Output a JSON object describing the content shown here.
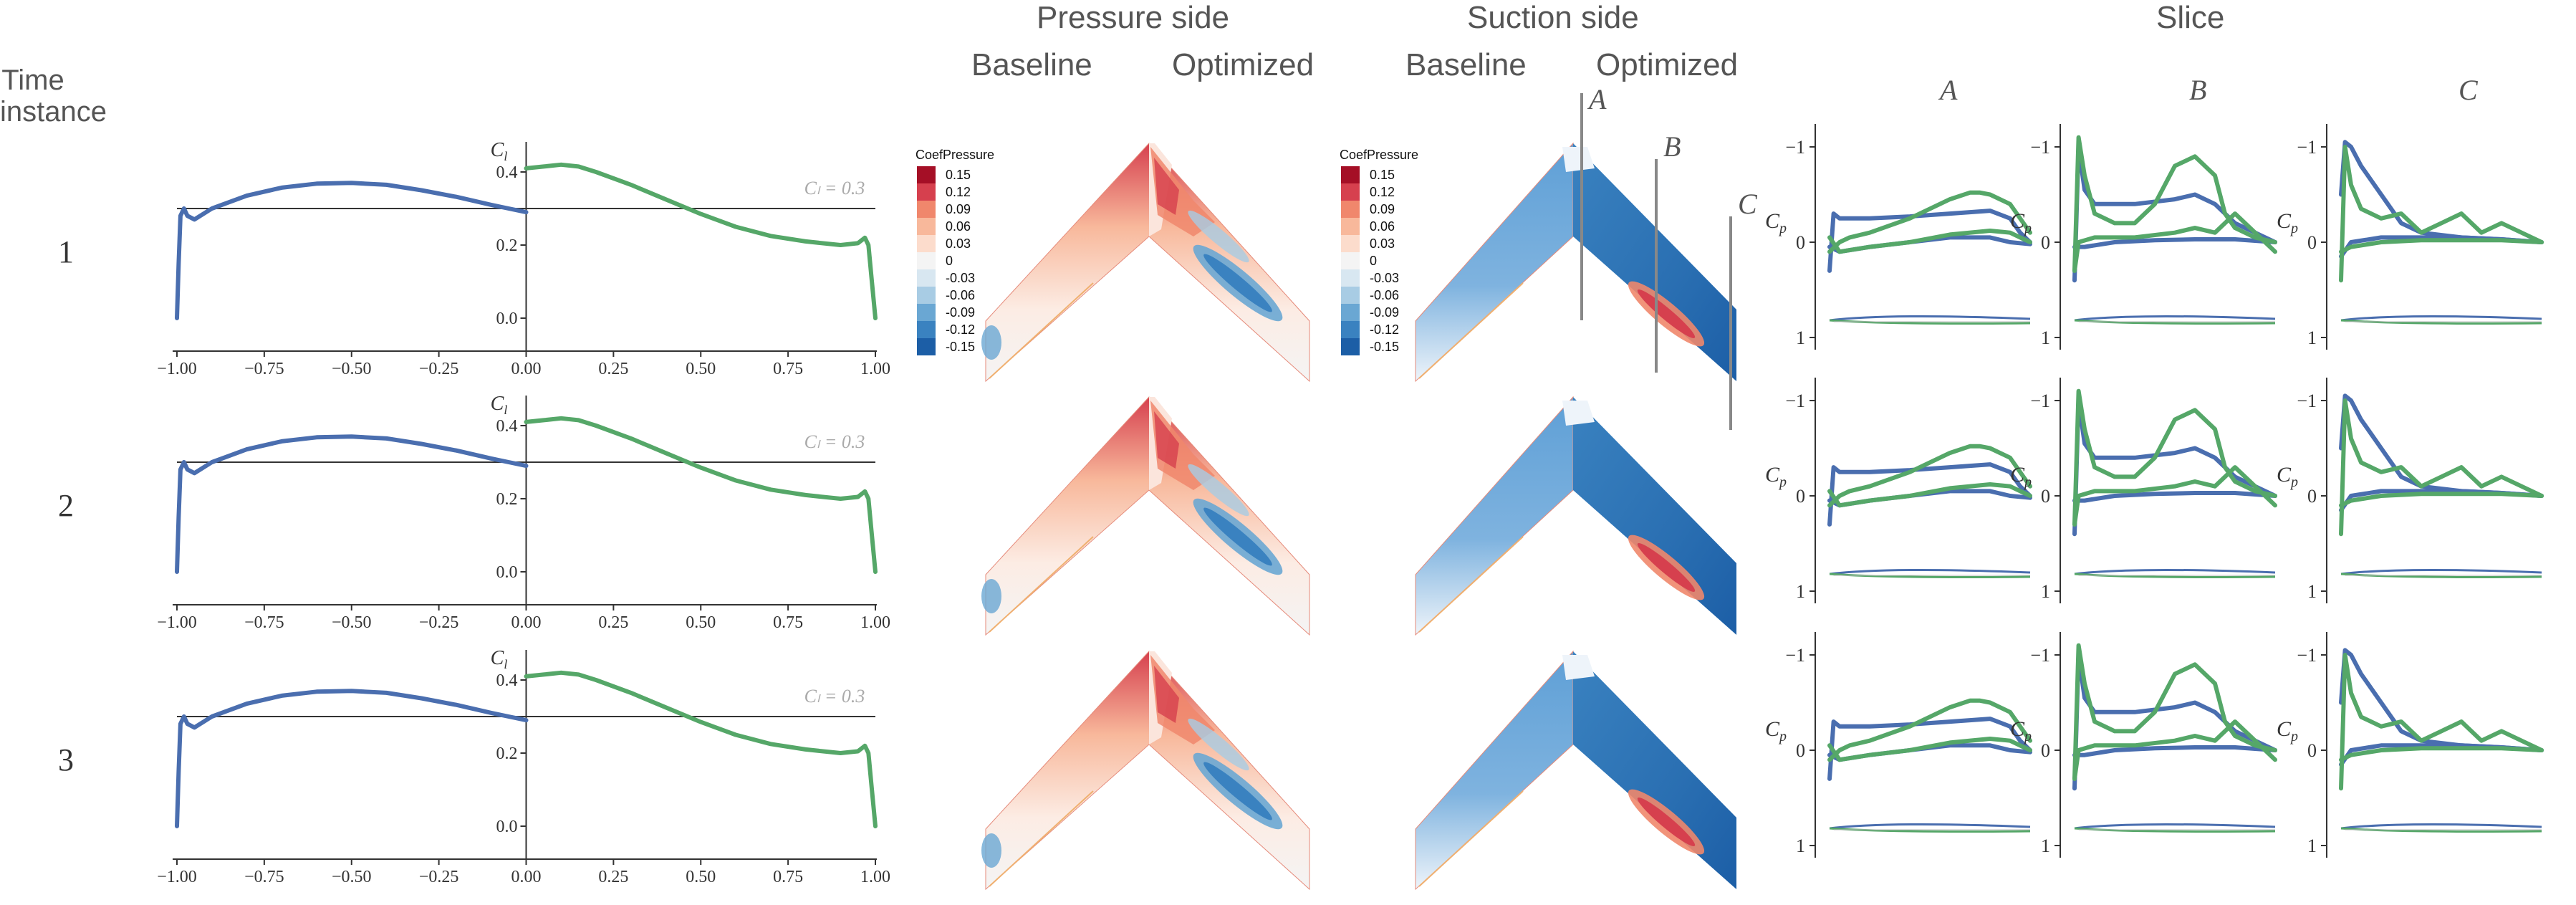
{
  "headers": {
    "time_instance": [
      "Time",
      "instance"
    ],
    "pressure_side": "Pressure side",
    "suction_side": "Suction side",
    "slice": "Slice",
    "baseline": "Baseline",
    "optimized": "Optimized",
    "slice_cols": [
      "A",
      "B",
      "C"
    ]
  },
  "row_labels": [
    "1",
    "2",
    "3"
  ],
  "colorbar": {
    "title": "CoefPressure",
    "ticks": [
      "0.15",
      "0.12",
      "0.09",
      "0.06",
      "0.03",
      "0",
      "-0.03",
      "-0.06",
      "-0.09",
      "-0.12",
      "-0.15"
    ],
    "colors": [
      "#a50f26",
      "#d6404e",
      "#f0876c",
      "#f8b89b",
      "#fcdccc",
      "#f4f4f4",
      "#d8e7f1",
      "#a8cce4",
      "#6aa7d3",
      "#3a82c0",
      "#1c5ea6"
    ]
  },
  "colors": {
    "baseline": "#4a6eaf",
    "optimized": "#55a768",
    "refline": "#333333",
    "axis": "#333333"
  },
  "chart_data": [
    {
      "type": "line",
      "panel": "lift-distribution",
      "time_instance": 1,
      "xlabel": "",
      "ylabel": "C_l",
      "xlim": [
        -1.0,
        1.0
      ],
      "ylim": [
        -0.1,
        0.45
      ],
      "xticks": [
        -1.0,
        -0.75,
        -0.5,
        -0.25,
        0.0,
        0.25,
        0.5,
        0.75,
        1.0
      ],
      "xtick_labels": [
        "−1.00",
        "−0.75",
        "−0.50",
        "−0.25",
        "0.00",
        "0.25",
        "0.50",
        "0.75",
        "1.00"
      ],
      "yticks": [
        0.0,
        0.2,
        0.4
      ],
      "ytick_labels": [
        "0.0",
        "0.2",
        "0.4"
      ],
      "reference": {
        "y": 0.3,
        "label": "C_l = 0.3"
      },
      "series": [
        {
          "x": [
            -1.0,
            -0.995,
            -0.99,
            -0.98,
            -0.97,
            -0.95,
            -0.9,
            -0.8,
            -0.7,
            -0.6,
            -0.5,
            -0.4,
            -0.3,
            -0.2,
            -0.1,
            -0.05,
            0.0
          ],
          "y": [
            0.0,
            0.15,
            0.28,
            0.3,
            0.28,
            0.27,
            0.3,
            0.335,
            0.357,
            0.368,
            0.37,
            0.365,
            0.35,
            0.332,
            0.31,
            0.3,
            0.29
          ]
        },
        {
          "x": [
            0.0,
            0.05,
            0.1,
            0.15,
            0.2,
            0.3,
            0.4,
            0.5,
            0.6,
            0.7,
            0.8,
            0.9,
            0.95,
            0.97,
            0.98,
            0.99,
            1.0
          ],
          "y": [
            0.41,
            0.415,
            0.42,
            0.415,
            0.4,
            0.365,
            0.325,
            0.285,
            0.25,
            0.225,
            0.21,
            0.2,
            0.205,
            0.22,
            0.2,
            0.1,
            0.0
          ]
        }
      ]
    },
    {
      "type": "line",
      "panel": "lift-distribution",
      "time_instance": 2,
      "xlabel": "",
      "ylabel": "C_l",
      "xlim": [
        -1.0,
        1.0
      ],
      "ylim": [
        -0.1,
        0.45
      ],
      "xticks": [
        -1.0,
        -0.75,
        -0.5,
        -0.25,
        0.0,
        0.25,
        0.5,
        0.75,
        1.0
      ],
      "xtick_labels": [
        "−1.00",
        "−0.75",
        "−0.50",
        "−0.25",
        "0.00",
        "0.25",
        "0.50",
        "0.75",
        "1.00"
      ],
      "yticks": [
        0.0,
        0.2,
        0.4
      ],
      "ytick_labels": [
        "0.0",
        "0.2",
        "0.4"
      ],
      "reference": {
        "y": 0.3,
        "label": "C_l = 0.3"
      },
      "series": [
        {
          "x": [
            -1.0,
            -0.995,
            -0.99,
            -0.98,
            -0.97,
            -0.95,
            -0.9,
            -0.8,
            -0.7,
            -0.6,
            -0.5,
            -0.4,
            -0.3,
            -0.2,
            -0.1,
            -0.05,
            0.0
          ],
          "y": [
            0.0,
            0.15,
            0.28,
            0.3,
            0.28,
            0.27,
            0.3,
            0.335,
            0.357,
            0.368,
            0.37,
            0.365,
            0.35,
            0.332,
            0.31,
            0.3,
            0.29
          ]
        },
        {
          "x": [
            0.0,
            0.05,
            0.1,
            0.15,
            0.2,
            0.3,
            0.4,
            0.5,
            0.6,
            0.7,
            0.8,
            0.9,
            0.95,
            0.97,
            0.98,
            0.99,
            1.0
          ],
          "y": [
            0.41,
            0.415,
            0.42,
            0.415,
            0.4,
            0.365,
            0.325,
            0.285,
            0.25,
            0.225,
            0.21,
            0.2,
            0.205,
            0.22,
            0.2,
            0.1,
            0.0
          ]
        }
      ]
    },
    {
      "type": "line",
      "panel": "lift-distribution",
      "time_instance": 3,
      "xlabel": "",
      "ylabel": "C_l",
      "xlim": [
        -1.0,
        1.0
      ],
      "ylim": [
        -0.1,
        0.45
      ],
      "xticks": [
        -1.0,
        -0.75,
        -0.5,
        -0.25,
        0.0,
        0.25,
        0.5,
        0.75,
        1.0
      ],
      "xtick_labels": [
        "−1.00",
        "−0.75",
        "−0.50",
        "−0.25",
        "0.00",
        "0.25",
        "0.50",
        "0.75",
        "1.00"
      ],
      "yticks": [
        0.0,
        0.2,
        0.4
      ],
      "ytick_labels": [
        "0.0",
        "0.2",
        "0.4"
      ],
      "reference": {
        "y": 0.3,
        "label": "C_l = 0.3"
      },
      "series": [
        {
          "x": [
            -1.0,
            -0.995,
            -0.99,
            -0.98,
            -0.97,
            -0.95,
            -0.9,
            -0.8,
            -0.7,
            -0.6,
            -0.5,
            -0.4,
            -0.3,
            -0.2,
            -0.1,
            -0.05,
            0.0
          ],
          "y": [
            0.0,
            0.15,
            0.28,
            0.3,
            0.28,
            0.27,
            0.3,
            0.335,
            0.357,
            0.368,
            0.37,
            0.365,
            0.35,
            0.332,
            0.31,
            0.3,
            0.29
          ]
        },
        {
          "x": [
            0.0,
            0.05,
            0.1,
            0.15,
            0.2,
            0.3,
            0.4,
            0.5,
            0.6,
            0.7,
            0.8,
            0.9,
            0.95,
            0.97,
            0.98,
            0.99,
            1.0
          ],
          "y": [
            0.41,
            0.415,
            0.42,
            0.415,
            0.4,
            0.365,
            0.325,
            0.285,
            0.25,
            0.225,
            0.21,
            0.2,
            0.205,
            0.22,
            0.2,
            0.1,
            0.0
          ]
        }
      ]
    },
    {
      "type": "line",
      "panel": "pressure-slices",
      "ylabel": "C_p",
      "ylim_inverted": [
        -1.2,
        1.1
      ],
      "yticks": [
        -1,
        0,
        1
      ],
      "ytick_labels": [
        "−1",
        "0",
        "1"
      ],
      "xlim": [
        0,
        1
      ],
      "slices": [
        "A",
        "B",
        "C"
      ],
      "series": [
        {
          "name": "",
          "slice": "A",
          "x": [
            0.0,
            0.02,
            0.05,
            0.1,
            0.2,
            0.4,
            0.6,
            0.8,
            0.9,
            0.95,
            1.0
          ],
          "y": [
            0.3,
            -0.3,
            -0.25,
            -0.25,
            -0.25,
            -0.27,
            -0.3,
            -0.33,
            -0.25,
            -0.1,
            0.0
          ]
        },
        {
          "name": "",
          "slice": "A",
          "x": [
            0.0,
            0.05,
            0.2,
            0.4,
            0.6,
            0.8,
            0.9,
            1.0
          ],
          "y": [
            0.05,
            0.1,
            0.05,
            0.0,
            -0.05,
            -0.05,
            0.0,
            0.02
          ]
        },
        {
          "name": "",
          "slice": "A",
          "x": [
            0.0,
            0.05,
            0.1,
            0.2,
            0.4,
            0.6,
            0.7,
            0.75,
            0.8,
            0.9,
            1.0
          ],
          "y": [
            0.1,
            0.0,
            -0.05,
            -0.1,
            -0.25,
            -0.45,
            -0.52,
            -0.52,
            -0.5,
            -0.4,
            -0.1
          ]
        },
        {
          "name": "",
          "slice": "A",
          "x": [
            0.0,
            0.05,
            0.2,
            0.4,
            0.6,
            0.8,
            0.9,
            1.0
          ],
          "y": [
            -0.05,
            0.1,
            0.05,
            0.0,
            -0.08,
            -0.12,
            -0.1,
            0.0
          ]
        },
        {
          "name": "",
          "slice": "B",
          "x": [
            0.0,
            0.02,
            0.05,
            0.1,
            0.2,
            0.3,
            0.5,
            0.6,
            0.7,
            0.8,
            0.9,
            1.0
          ],
          "y": [
            0.4,
            -1.0,
            -0.55,
            -0.4,
            -0.4,
            -0.4,
            -0.45,
            -0.5,
            -0.4,
            -0.2,
            -0.1,
            0.0
          ]
        },
        {
          "name": "",
          "slice": "B",
          "x": [
            0.0,
            0.05,
            0.2,
            0.4,
            0.6,
            0.8,
            1.0
          ],
          "y": [
            0.05,
            0.05,
            0.0,
            -0.02,
            -0.03,
            -0.03,
            0.0
          ]
        },
        {
          "name": "",
          "slice": "B",
          "x": [
            0.0,
            0.02,
            0.05,
            0.1,
            0.2,
            0.3,
            0.4,
            0.5,
            0.6,
            0.7,
            0.75,
            0.8,
            0.9,
            1.0
          ],
          "y": [
            0.3,
            -1.1,
            -0.7,
            -0.3,
            -0.2,
            -0.2,
            -0.4,
            -0.8,
            -0.9,
            -0.7,
            -0.3,
            -0.15,
            -0.05,
            0.0
          ]
        },
        {
          "name": "",
          "slice": "B",
          "x": [
            0.0,
            0.02,
            0.1,
            0.3,
            0.5,
            0.6,
            0.7,
            0.8,
            0.9,
            1.0
          ],
          "y": [
            0.3,
            0.0,
            -0.05,
            -0.05,
            -0.1,
            -0.15,
            -0.1,
            -0.3,
            -0.1,
            0.1
          ]
        },
        {
          "name": "",
          "slice": "C",
          "x": [
            0.0,
            0.02,
            0.05,
            0.1,
            0.2,
            0.3,
            0.4,
            0.6,
            0.8,
            1.0
          ],
          "y": [
            -0.5,
            -1.05,
            -1.0,
            -0.8,
            -0.5,
            -0.2,
            -0.1,
            -0.05,
            -0.03,
            0.0
          ]
        },
        {
          "name": "",
          "slice": "C",
          "x": [
            0.0,
            0.05,
            0.2,
            0.4,
            0.6,
            0.8,
            1.0
          ],
          "y": [
            0.15,
            0.0,
            -0.05,
            -0.05,
            -0.05,
            -0.03,
            0.0
          ]
        },
        {
          "name": "",
          "slice": "C",
          "x": [
            0.0,
            0.02,
            0.05,
            0.1,
            0.2,
            0.3,
            0.4,
            0.5,
            0.6,
            0.7,
            0.8,
            0.9,
            1.0
          ],
          "y": [
            0.4,
            -1.0,
            -0.6,
            -0.35,
            -0.25,
            -0.3,
            -0.1,
            -0.2,
            -0.3,
            -0.1,
            -0.2,
            -0.1,
            0.0
          ]
        },
        {
          "name": "",
          "slice": "C",
          "x": [
            0.0,
            0.05,
            0.2,
            0.4,
            0.6,
            0.8,
            1.0
          ],
          "y": [
            0.1,
            0.05,
            0.0,
            -0.02,
            -0.02,
            -0.02,
            0.0
          ]
        }
      ]
    }
  ],
  "slice_markers": [
    "A",
    "B",
    "C"
  ]
}
